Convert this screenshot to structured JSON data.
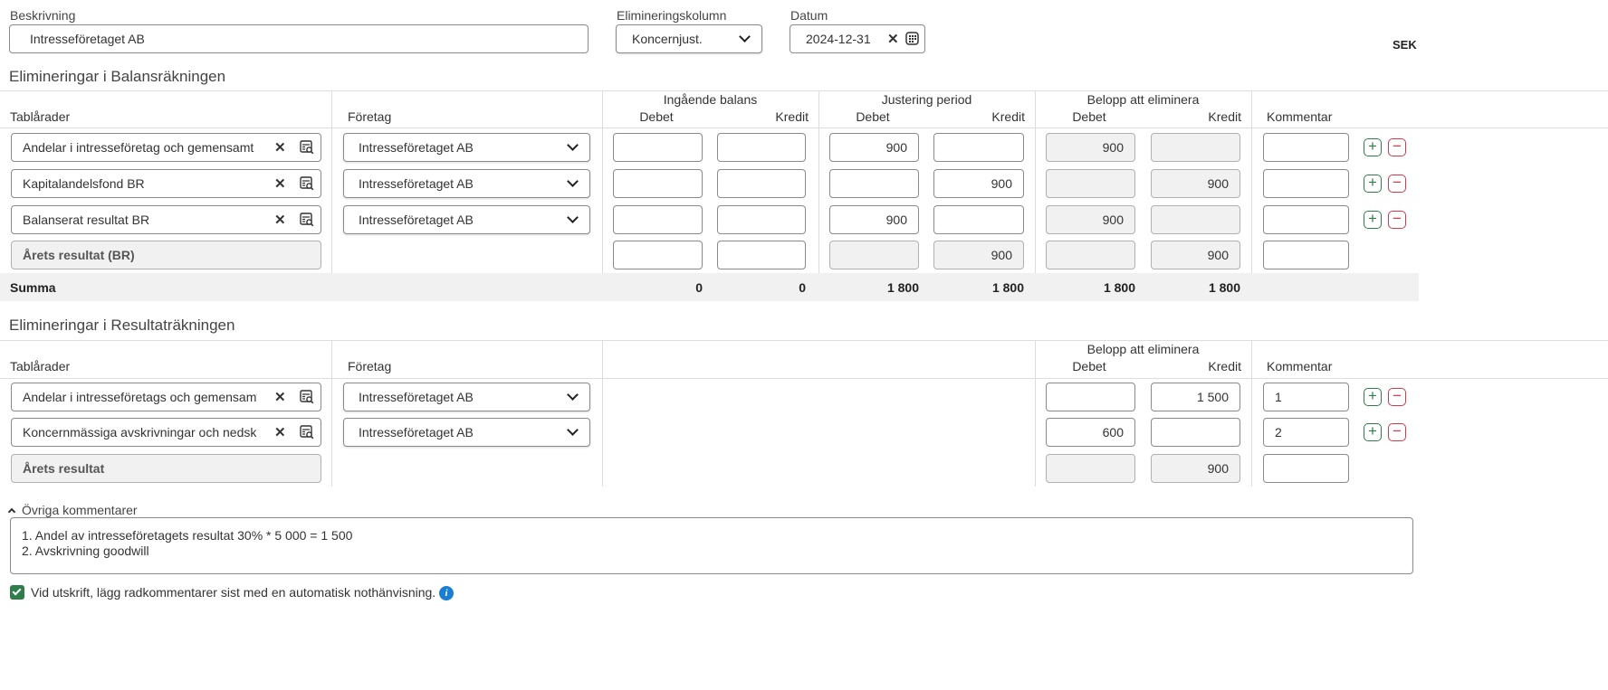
{
  "header": {
    "description_label": "Beskrivning",
    "description_value": "Intresseföretaget AB",
    "elim_column_label": "Elimineringskolumn",
    "elim_column_value": "Koncernjust.",
    "date_label": "Datum",
    "date_value": "2024-12-31",
    "currency": "SEK"
  },
  "balance": {
    "title": "Elimineringar i Balansräkningen",
    "columns": {
      "rows": "Tablårader",
      "company": "Företag",
      "opening": "Ingående balans",
      "adjustment": "Justering period",
      "eliminate": "Belopp att eliminera",
      "debit": "Debet",
      "credit": "Kredit",
      "comment": "Kommentar"
    },
    "rows": [
      {
        "account": "Andelar i intresseföretag och gemensamt styrda företag",
        "company": "Intresseföretaget AB",
        "open_debit": "",
        "open_credit": "",
        "adj_debit": "900",
        "adj_credit": "",
        "elim_debit": "900",
        "elim_credit": "",
        "comment": ""
      },
      {
        "account": "Kapitalandelsfond BR",
        "company": "Intresseföretaget AB",
        "open_debit": "",
        "open_credit": "",
        "adj_debit": "",
        "adj_credit": "900",
        "elim_debit": "",
        "elim_credit": "900",
        "comment": ""
      },
      {
        "account": "Balanserat resultat BR",
        "company": "Intresseföretaget AB",
        "open_debit": "",
        "open_credit": "",
        "adj_debit": "900",
        "adj_credit": "",
        "elim_debit": "900",
        "elim_credit": "",
        "comment": ""
      }
    ],
    "result_row": {
      "account": "Årets resultat (BR)",
      "open_debit": "",
      "open_credit": "",
      "adj_debit": "",
      "adj_credit": "900",
      "elim_debit": "",
      "elim_credit": "900",
      "comment": ""
    },
    "sum": {
      "label": "Summa",
      "open_debit": "0",
      "open_credit": "0",
      "adj_debit": "1 800",
      "adj_credit": "1 800",
      "elim_debit": "1 800",
      "elim_credit": "1 800"
    }
  },
  "income": {
    "title": "Elimineringar i Resultaträkningen",
    "columns": {
      "rows": "Tablårader",
      "company": "Företag",
      "eliminate": "Belopp att eliminera",
      "debit": "Debet",
      "credit": "Kredit",
      "comment": "Kommentar"
    },
    "rows": [
      {
        "account": "Andelar i intresseföretags och gemensamt styrda företags resultat",
        "company": "Intresseföretaget AB",
        "elim_debit": "",
        "elim_credit": "1 500",
        "comment": "1"
      },
      {
        "account": "Koncernmässiga avskrivningar och nedskrivningar",
        "company": "Intresseföretaget AB",
        "elim_debit": "600",
        "elim_credit": "",
        "comment": "2"
      }
    ],
    "result_row": {
      "account": "Årets resultat",
      "elim_debit": "",
      "elim_credit": "900",
      "comment": ""
    }
  },
  "comments": {
    "toggle_label": "Övriga kommentarer",
    "text": "1. Andel av intresseföretagets resultat 30% * 5 000 = 1 500\n2. Avskrivning goodwill",
    "print_checkbox_label": "Vid utskrift, lägg radkommentarer sist med en automatisk nothänvisning.",
    "print_checkbox_checked": true
  },
  "colors": {
    "add": "#2e7d4a",
    "remove": "#d33a4f",
    "checkbox": "#2e7d4a",
    "info": "#1a7fd4"
  }
}
